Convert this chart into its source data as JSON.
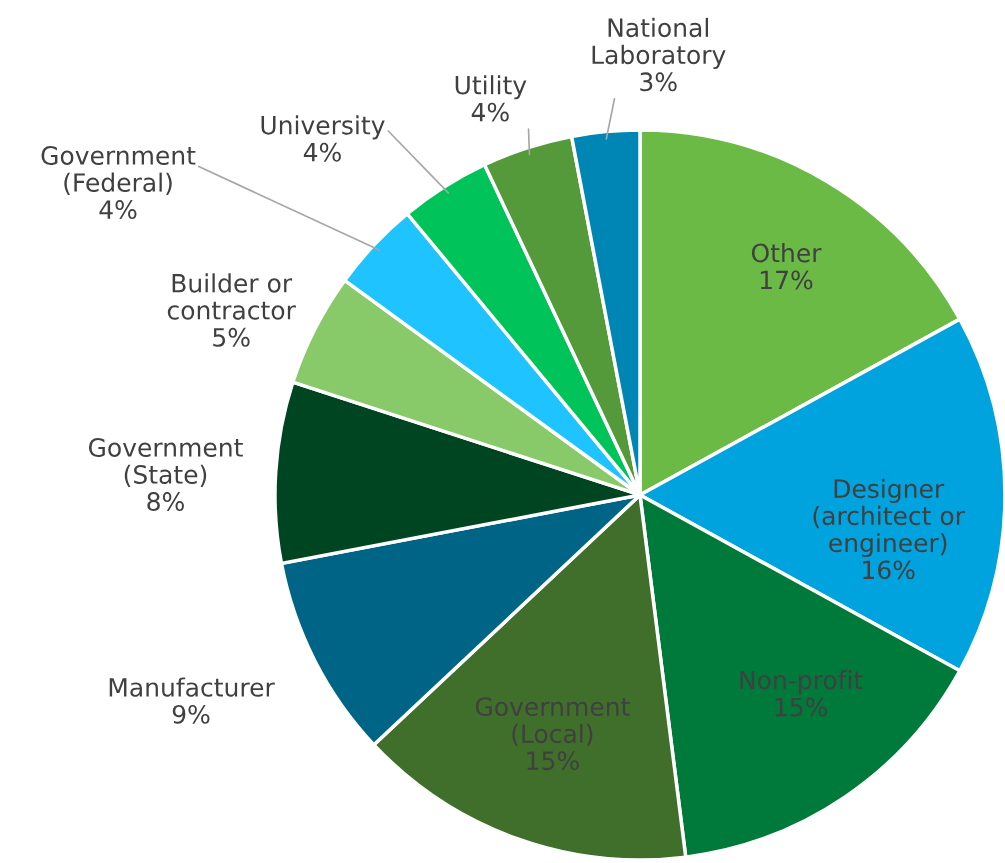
{
  "chart_data": {
    "type": "pie",
    "categories": [
      "Other",
      "Designer\n(architect or\nengineer)",
      "Non-profit",
      "Government\n(Local)",
      "Manufacturer",
      "Government\n(State)",
      "Builder or\ncontractor",
      "Government\n(Federal)",
      "University",
      "Utility",
      "National\nLaboratory"
    ],
    "values": [
      17,
      16,
      15,
      15,
      9,
      8,
      5,
      4,
      4,
      4,
      3
    ],
    "colors": [
      "#6aba45",
      "#00a3dd",
      "#007a3a",
      "#3f6f2a",
      "#006486",
      "#004521",
      "#88c96a",
      "#1ec3ff",
      "#00c35a",
      "#559a3a",
      "#0086b4"
    ],
    "value_labels": [
      "17%",
      "16%",
      "15%",
      "15%",
      "9%",
      "8%",
      "5%",
      "4%",
      "4%",
      "4%",
      "3%"
    ]
  }
}
